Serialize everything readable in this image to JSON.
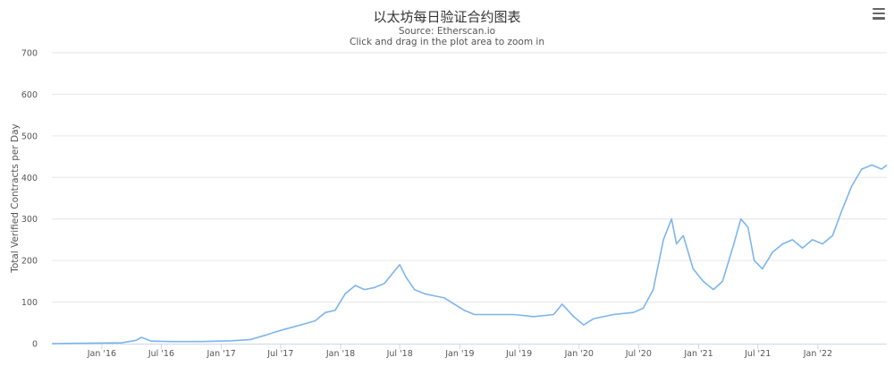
{
  "header": {
    "title": "以太坊每日验证合约图表",
    "subtitle_source": "Source: Etherscan.io",
    "subtitle_hint": "Click and drag in the plot area to zoom in"
  },
  "menu": {
    "icon": "hamburger-menu-icon"
  },
  "chart_data": {
    "type": "line",
    "title": "以太坊每日验证合约图表",
    "subtitle": "Source: Etherscan.io",
    "ylabel": "Total Verified Contracts per Day",
    "xlabel": "",
    "ylim": [
      0,
      700
    ],
    "y_ticks": [
      0,
      100,
      200,
      300,
      400,
      500,
      600,
      700
    ],
    "x_range": [
      "2015-08-01",
      "2022-07-31"
    ],
    "x_ticks": [
      {
        "date": "2016-01-01",
        "label": "Jan '16"
      },
      {
        "date": "2016-07-01",
        "label": "Jul '16"
      },
      {
        "date": "2017-01-01",
        "label": "Jan '17"
      },
      {
        "date": "2017-07-01",
        "label": "Jul '17"
      },
      {
        "date": "2018-01-01",
        "label": "Jan '18"
      },
      {
        "date": "2018-07-01",
        "label": "Jul '18"
      },
      {
        "date": "2019-01-01",
        "label": "Jan '19"
      },
      {
        "date": "2019-07-01",
        "label": "Jul '19"
      },
      {
        "date": "2020-01-01",
        "label": "Jan '20"
      },
      {
        "date": "2020-07-01",
        "label": "Jul '20"
      },
      {
        "date": "2021-01-01",
        "label": "Jan '21"
      },
      {
        "date": "2021-07-01",
        "label": "Jul '21"
      },
      {
        "date": "2022-01-01",
        "label": "Jan '22"
      }
    ],
    "grid": true,
    "legend": "none",
    "line_color": "#7cb5ec",
    "series": [
      {
        "points": [
          [
            "2015-08-01",
            0
          ],
          [
            "2015-11-01",
            1
          ],
          [
            "2016-03-01",
            2
          ],
          [
            "2016-04-15",
            8
          ],
          [
            "2016-05-01",
            15
          ],
          [
            "2016-06-01",
            6
          ],
          [
            "2016-08-01",
            5
          ],
          [
            "2016-11-01",
            5
          ],
          [
            "2017-02-01",
            7
          ],
          [
            "2017-04-01",
            10
          ],
          [
            "2017-05-15",
            20
          ],
          [
            "2017-06-15",
            28
          ],
          [
            "2017-07-15",
            35
          ],
          [
            "2017-09-01",
            45
          ],
          [
            "2017-10-15",
            55
          ],
          [
            "2017-11-15",
            75
          ],
          [
            "2017-12-15",
            80
          ],
          [
            "2018-01-15",
            120
          ],
          [
            "2018-02-15",
            140
          ],
          [
            "2018-03-15",
            130
          ],
          [
            "2018-04-15",
            135
          ],
          [
            "2018-05-15",
            145
          ],
          [
            "2018-06-15",
            175
          ],
          [
            "2018-07-01",
            190
          ],
          [
            "2018-07-20",
            160
          ],
          [
            "2018-08-15",
            130
          ],
          [
            "2018-09-15",
            120
          ],
          [
            "2018-10-15",
            115
          ],
          [
            "2018-11-15",
            110
          ],
          [
            "2018-12-15",
            95
          ],
          [
            "2019-01-15",
            80
          ],
          [
            "2019-02-15",
            70
          ],
          [
            "2019-04-15",
            70
          ],
          [
            "2019-06-15",
            70
          ],
          [
            "2019-08-15",
            65
          ],
          [
            "2019-10-15",
            70
          ],
          [
            "2019-11-10",
            95
          ],
          [
            "2019-12-15",
            65
          ],
          [
            "2020-01-15",
            45
          ],
          [
            "2020-02-15",
            60
          ],
          [
            "2020-04-15",
            70
          ],
          [
            "2020-06-15",
            75
          ],
          [
            "2020-07-15",
            85
          ],
          [
            "2020-08-15",
            130
          ],
          [
            "2020-09-15",
            250
          ],
          [
            "2020-10-10",
            300
          ],
          [
            "2020-10-25",
            240
          ],
          [
            "2020-11-15",
            260
          ],
          [
            "2020-12-15",
            180
          ],
          [
            "2021-01-15",
            150
          ],
          [
            "2021-02-15",
            130
          ],
          [
            "2021-03-15",
            150
          ],
          [
            "2021-04-15",
            230
          ],
          [
            "2021-05-10",
            300
          ],
          [
            "2021-06-01",
            280
          ],
          [
            "2021-06-20",
            200
          ],
          [
            "2021-07-15",
            180
          ],
          [
            "2021-08-15",
            220
          ],
          [
            "2021-09-15",
            240
          ],
          [
            "2021-10-15",
            250
          ],
          [
            "2021-11-15",
            230
          ],
          [
            "2021-12-15",
            250
          ],
          [
            "2022-01-15",
            240
          ],
          [
            "2022-02-15",
            260
          ],
          [
            "2022-03-15",
            320
          ],
          [
            "2022-04-15",
            380
          ],
          [
            "2022-05-15",
            420
          ],
          [
            "2022-06-15",
            430
          ],
          [
            "2022-07-15",
            420
          ],
          [
            "2022-07-31",
            430
          ]
        ]
      }
    ]
  }
}
